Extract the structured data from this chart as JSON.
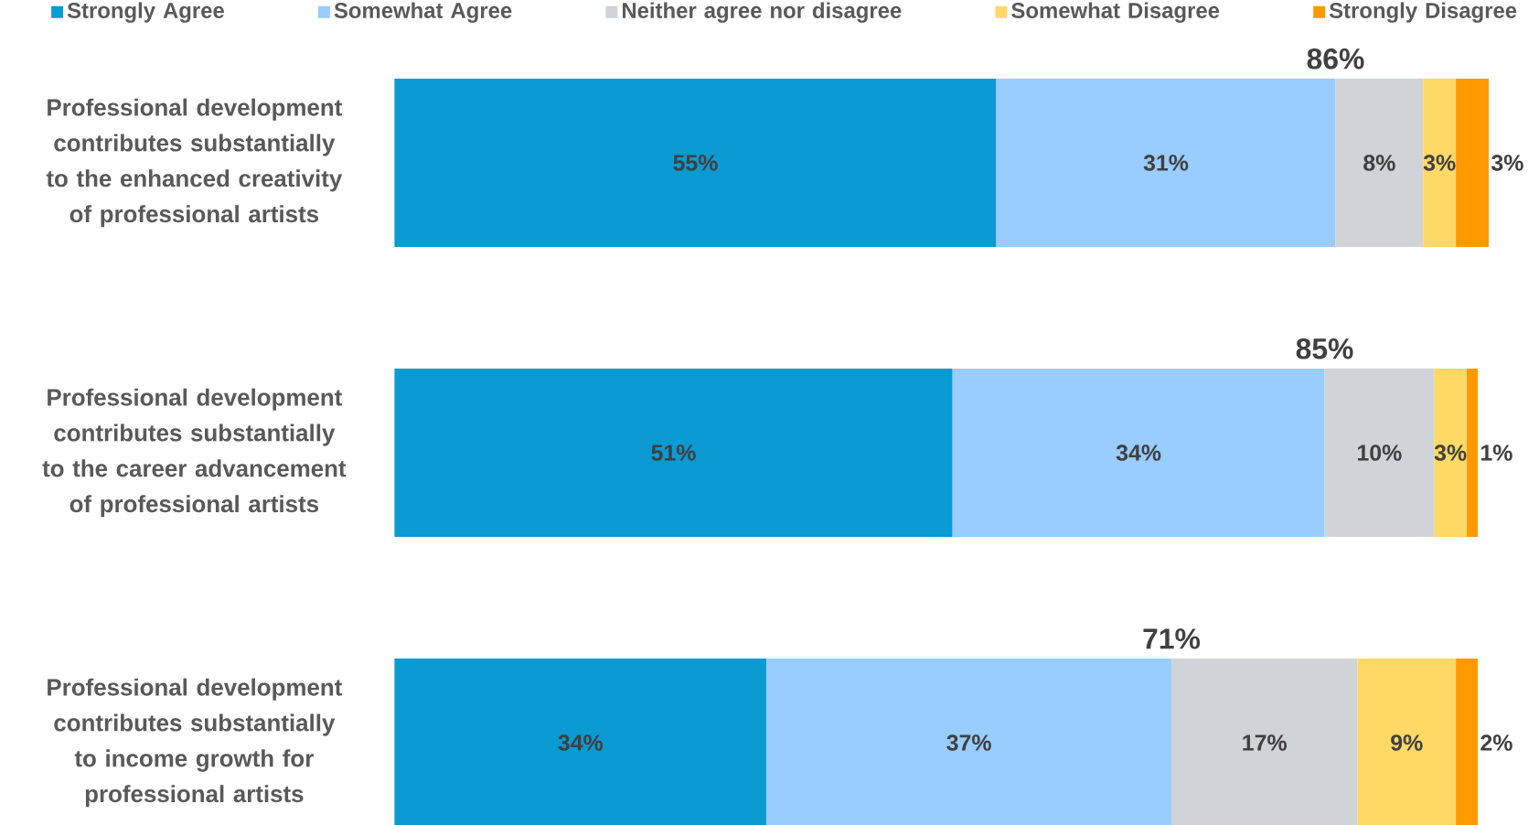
{
  "chart_data": {
    "type": "bar",
    "orientation": "horizontal",
    "stacked": true,
    "categories": [
      "Professional development contributes substantially to the enhanced creativity of professional artists",
      "Professional development contributes substantially to the career advancement of professional artists",
      "Professional development contributes substantially to income growth for professional artists"
    ],
    "series": [
      {
        "name": "Strongly Agree",
        "color": "#0b9ad1",
        "values": [
          55,
          51,
          34
        ],
        "value_labels": [
          "55%",
          "51%",
          "34%"
        ]
      },
      {
        "name": "Somewhat Agree",
        "color": "#99ccff",
        "values": [
          31,
          34,
          37
        ],
        "value_labels": [
          "31%",
          "34%",
          "37%"
        ]
      },
      {
        "name": "Neither agree nor disagree",
        "color": "#d0d3d8",
        "values": [
          8,
          10,
          17
        ],
        "value_labels": [
          "8%",
          "10%",
          "17%"
        ]
      },
      {
        "name": "Somewhat Disagree",
        "color": "#ffd966",
        "values": [
          3,
          3,
          9
        ],
        "value_labels": [
          "3%",
          "3%",
          "9%"
        ]
      },
      {
        "name": "Strongly Disagree",
        "color": "#ff9900",
        "values": [
          3,
          1,
          2
        ],
        "value_labels": [
          "3%",
          "1%",
          "2%"
        ]
      }
    ],
    "annotations": [
      "86%",
      "85%",
      "71%"
    ],
    "xlim": [
      0,
      100
    ],
    "tick_labels": "y",
    "legend": "top"
  }
}
